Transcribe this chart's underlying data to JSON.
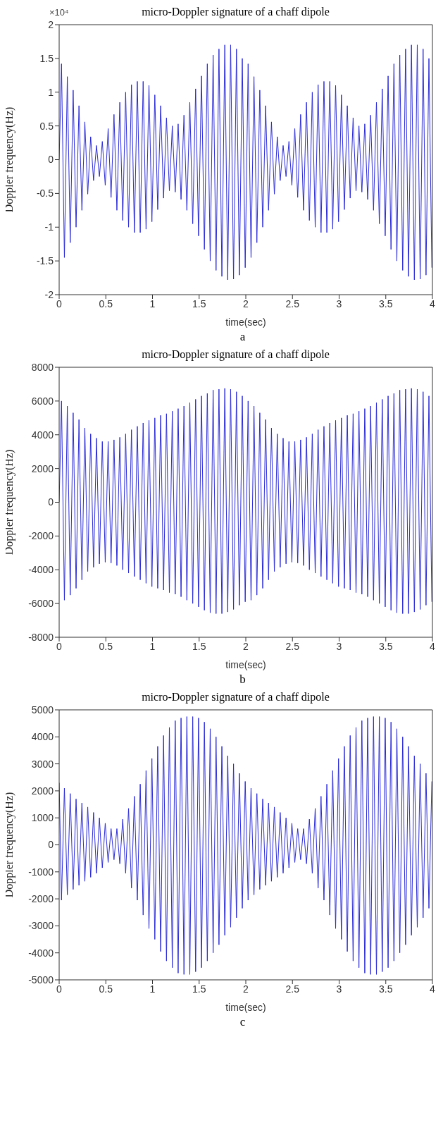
{
  "chart_data": [
    {
      "type": "line",
      "title": "micro-Doppler signature of a chaff dipole",
      "xlabel": "time(sec)",
      "ylabel": "Doppler frequency(Hz)",
      "annotations": [
        "×10⁴",
        "a"
      ],
      "xlim": [
        0,
        4
      ],
      "xticks": [
        0,
        0.5,
        1,
        1.5,
        2,
        2.5,
        3,
        3.5,
        4
      ],
      "ylim": [
        -2,
        2
      ],
      "yticks": [
        -2,
        -1.5,
        -1,
        -0.5,
        0,
        0.5,
        1,
        1.5,
        2
      ],
      "marker": "none",
      "line_style": "solid",
      "x": [
        0,
        0.025,
        0.05625,
        0.0875,
        0.11875,
        0.15,
        0.18125,
        0.2125,
        0.24375,
        0.275,
        0.30625,
        0.3375,
        0.36875,
        0.4,
        0.43125,
        0.4625,
        0.49375,
        0.525,
        0.55625,
        0.5875,
        0.61875,
        0.65,
        0.68125,
        0.7125,
        0.74375,
        0.775,
        0.80625,
        0.8375,
        0.86875,
        0.9,
        0.93125,
        0.9625,
        0.99375,
        1.025,
        1.05625,
        1.0875,
        1.11875,
        1.15,
        1.18125,
        1.2125,
        1.24375,
        1.275,
        1.30625,
        1.3375,
        1.36875,
        1.4,
        1.43125,
        1.4625,
        1.49375,
        1.525,
        1.55625,
        1.5875,
        1.61875,
        1.65,
        1.68125,
        1.7125,
        1.74375,
        1.775,
        1.80625,
        1.8375,
        1.86875,
        1.9,
        1.93125,
        1.9625,
        1.99375,
        2.025,
        2.05625,
        2.0875,
        2.11875,
        2.15,
        2.18125,
        2.2125,
        2.24375,
        2.275,
        2.30625,
        2.3375,
        2.36875,
        2.4,
        2.43125,
        2.4625,
        2.49375,
        2.525,
        2.55625,
        2.5875,
        2.61875,
        2.65,
        2.68125,
        2.7125,
        2.74375,
        2.775,
        2.80625,
        2.8375,
        2.86875,
        2.9,
        2.93125,
        2.9625,
        2.99375,
        3.025,
        3.05625,
        3.0875,
        3.11875,
        3.15,
        3.18125,
        3.2125,
        3.24375,
        3.275,
        3.30625,
        3.3375,
        3.36875,
        3.4,
        3.43125,
        3.4625,
        3.49375,
        3.525,
        3.55625,
        3.5875,
        3.61875,
        3.65,
        3.68125,
        3.7125,
        3.74375,
        3.775,
        3.80625,
        3.8375,
        3.86875,
        3.9,
        3.93125,
        3.9625,
        3.99375
      ],
      "series": [
        {
          "color": "#2b2bd9",
          "values": [
            0,
            1.42,
            -1.45,
            1.23,
            -1.23,
            1.03,
            -1,
            0.8,
            -0.75,
            0.56,
            -0.51,
            0.34,
            -0.31,
            0.21,
            -0.25,
            0.27,
            -0.38,
            0.46,
            -0.56,
            0.67,
            -0.75,
            0.85,
            -0.9,
            1,
            -1,
            1.11,
            -1.08,
            1.16,
            -1.08,
            1.16,
            -1.03,
            1.1,
            -0.92,
            0.96,
            -0.74,
            0.8,
            -0.57,
            0.62,
            -0.46,
            0.5,
            -0.48,
            0.53,
            -0.59,
            0.66,
            -0.75,
            0.85,
            -0.95,
            1.05,
            -1.13,
            1.24,
            -1.33,
            1.42,
            -1.5,
            1.55,
            -1.64,
            1.64,
            -1.73,
            1.7,
            -1.78,
            1.7,
            -1.77,
            1.64,
            -1.71,
            1.5,
            -1.6,
            1.42,
            -1.45,
            1.23,
            -1.23,
            1.03,
            -1,
            0.8,
            -0.75,
            0.56,
            -0.51,
            0.34,
            -0.31,
            0.21,
            -0.25,
            0.27,
            -0.38,
            0.46,
            -0.56,
            0.67,
            -0.75,
            0.85,
            -0.9,
            1,
            -1,
            1.11,
            -1.08,
            1.16,
            -1.08,
            1.16,
            -1.03,
            1.1,
            -0.92,
            0.96,
            -0.74,
            0.8,
            -0.57,
            0.62,
            -0.46,
            0.5,
            -0.48,
            0.53,
            -0.59,
            0.66,
            -0.75,
            0.85,
            -0.95,
            1.05,
            -1.13,
            1.24,
            -1.33,
            1.42,
            -1.5,
            1.55,
            -1.64,
            1.64,
            -1.73,
            1.7,
            -1.78,
            1.7,
            -1.77,
            1.64,
            -1.71,
            1.5,
            -1.6
          ]
        }
      ]
    },
    {
      "type": "line",
      "title": "micro-Doppler signature of a chaff dipole",
      "xlabel": "time(sec)",
      "ylabel": "Doppler frequency(Hz)",
      "annotations": [
        "b"
      ],
      "xlim": [
        0,
        4
      ],
      "xticks": [
        0,
        0.5,
        1,
        1.5,
        2,
        2.5,
        3,
        3.5,
        4
      ],
      "ylim": [
        -8000,
        8000
      ],
      "yticks": [
        -8000,
        -6000,
        -4000,
        -2000,
        0,
        2000,
        4000,
        6000,
        8000
      ],
      "marker": "none",
      "line_style": "solid",
      "x": [
        0,
        0.025,
        0.05625,
        0.0875,
        0.11875,
        0.15,
        0.18125,
        0.2125,
        0.24375,
        0.275,
        0.30625,
        0.3375,
        0.36875,
        0.4,
        0.43125,
        0.4625,
        0.49375,
        0.525,
        0.55625,
        0.5875,
        0.61875,
        0.65,
        0.68125,
        0.7125,
        0.74375,
        0.775,
        0.80625,
        0.8375,
        0.86875,
        0.9,
        0.93125,
        0.9625,
        0.99375,
        1.025,
        1.05625,
        1.0875,
        1.11875,
        1.15,
        1.18125,
        1.2125,
        1.24375,
        1.275,
        1.30625,
        1.3375,
        1.36875,
        1.4,
        1.43125,
        1.4625,
        1.49375,
        1.525,
        1.55625,
        1.5875,
        1.61875,
        1.65,
        1.68125,
        1.7125,
        1.74375,
        1.775,
        1.80625,
        1.8375,
        1.86875,
        1.9,
        1.93125,
        1.9625,
        1.99375,
        2.025,
        2.05625,
        2.0875,
        2.11875,
        2.15,
        2.18125,
        2.2125,
        2.24375,
        2.275,
        2.30625,
        2.3375,
        2.36875,
        2.4,
        2.43125,
        2.4625,
        2.49375,
        2.525,
        2.55625,
        2.5875,
        2.61875,
        2.65,
        2.68125,
        2.7125,
        2.74375,
        2.775,
        2.80625,
        2.8375,
        2.86875,
        2.9,
        2.93125,
        2.9625,
        2.99375,
        3.025,
        3.05625,
        3.0875,
        3.11875,
        3.15,
        3.18125,
        3.2125,
        3.24375,
        3.275,
        3.30625,
        3.3375,
        3.36875,
        3.4,
        3.43125,
        3.4625,
        3.49375,
        3.525,
        3.55625,
        3.5875,
        3.61875,
        3.65,
        3.68125,
        3.7125,
        3.74375,
        3.775,
        3.80625,
        3.8375,
        3.86875,
        3.9,
        3.93125,
        3.9625,
        3.99375
      ],
      "series": [
        {
          "color": "#2b2bd9",
          "values": [
            0,
            6000,
            -5800,
            5700,
            -5500,
            5300,
            -5100,
            4900,
            -4600,
            4400,
            -4100,
            4050,
            -3850,
            3800,
            -3650,
            3600,
            -3550,
            3600,
            -3600,
            3700,
            -3750,
            3850,
            -4000,
            4050,
            -4200,
            4300,
            -4400,
            4500,
            -4600,
            4700,
            -4800,
            4850,
            -5000,
            5000,
            -5100,
            5150,
            -5200,
            5250,
            -5350,
            5400,
            -5450,
            5550,
            -5600,
            5700,
            -5800,
            5900,
            -6000,
            6100,
            -6200,
            6300,
            -6400,
            6450,
            -6550,
            6650,
            -6600,
            6700,
            -6600,
            6750,
            -6500,
            6700,
            -6350,
            6550,
            -6100,
            6300,
            -5900,
            6000,
            -5800,
            5700,
            -5500,
            5300,
            -5100,
            4900,
            -4600,
            4400,
            -4100,
            4050,
            -3850,
            3800,
            -3650,
            3600,
            -3550,
            3600,
            -3600,
            3700,
            -3750,
            3850,
            -4000,
            4050,
            -4200,
            4300,
            -4400,
            4500,
            -4600,
            4700,
            -4800,
            4850,
            -5000,
            5000,
            -5100,
            5150,
            -5200,
            5250,
            -5350,
            5400,
            -5450,
            5550,
            -5600,
            5700,
            -5800,
            5900,
            -6000,
            6100,
            -6200,
            6300,
            -6400,
            6450,
            -6550,
            6650,
            -6600,
            6700,
            -6600,
            6750,
            -6500,
            6700,
            -6350,
            6550,
            -6100,
            6300,
            -5900
          ]
        }
      ]
    },
    {
      "type": "line",
      "title": "micro-Doppler signature of a chaff dipole",
      "xlabel": "time(sec)",
      "ylabel": "Doppler frequency(Hz)",
      "annotations": [
        "c"
      ],
      "xlim": [
        0,
        4
      ],
      "xticks": [
        0,
        0.5,
        1,
        1.5,
        2,
        2.5,
        3,
        3.5,
        4
      ],
      "ylim": [
        -5000,
        5000
      ],
      "yticks": [
        -5000,
        -4000,
        -3000,
        -2000,
        -1000,
        0,
        1000,
        2000,
        3000,
        4000,
        5000
      ],
      "marker": "none",
      "line_style": "solid",
      "x": [
        0,
        0.025,
        0.05625,
        0.0875,
        0.11875,
        0.15,
        0.18125,
        0.2125,
        0.24375,
        0.275,
        0.30625,
        0.3375,
        0.36875,
        0.4,
        0.43125,
        0.4625,
        0.49375,
        0.525,
        0.55625,
        0.5875,
        0.61875,
        0.65,
        0.68125,
        0.7125,
        0.74375,
        0.775,
        0.80625,
        0.8375,
        0.86875,
        0.9,
        0.93125,
        0.9625,
        0.99375,
        1.025,
        1.05625,
        1.0875,
        1.11875,
        1.15,
        1.18125,
        1.2125,
        1.24375,
        1.275,
        1.30625,
        1.3375,
        1.36875,
        1.4,
        1.43125,
        1.4625,
        1.49375,
        1.525,
        1.55625,
        1.5875,
        1.61875,
        1.65,
        1.68125,
        1.7125,
        1.74375,
        1.775,
        1.80625,
        1.8375,
        1.86875,
        1.9,
        1.93125,
        1.9625,
        1.99375,
        2.025,
        2.05625,
        2.0875,
        2.11875,
        2.15,
        2.18125,
        2.2125,
        2.24375,
        2.275,
        2.30625,
        2.3375,
        2.36875,
        2.4,
        2.43125,
        2.4625,
        2.49375,
        2.525,
        2.55625,
        2.5875,
        2.61875,
        2.65,
        2.68125,
        2.7125,
        2.74375,
        2.775,
        2.80625,
        2.8375,
        2.86875,
        2.9,
        2.93125,
        2.9625,
        2.99375,
        3.025,
        3.05625,
        3.0875,
        3.11875,
        3.15,
        3.18125,
        3.2125,
        3.24375,
        3.275,
        3.30625,
        3.3375,
        3.36875,
        3.4,
        3.43125,
        3.4625,
        3.49375,
        3.525,
        3.55625,
        3.5875,
        3.61875,
        3.65,
        3.68125,
        3.7125,
        3.74375,
        3.775,
        3.80625,
        3.8375,
        3.86875,
        3.9,
        3.93125,
        3.9625,
        3.99375
      ],
      "series": [
        {
          "color": "#2b2bd9",
          "values": [
            2300,
            -2050,
            2100,
            -1850,
            1900,
            -1650,
            1700,
            -1500,
            1550,
            -1350,
            1400,
            -1200,
            1200,
            -1050,
            1000,
            -850,
            800,
            -650,
            600,
            -550,
            600,
            -700,
            950,
            -1050,
            1350,
            -1600,
            1800,
            -2050,
            2250,
            -2600,
            2750,
            -3100,
            3200,
            -3500,
            3650,
            -3950,
            4050,
            -4300,
            4350,
            -4550,
            4600,
            -4750,
            4700,
            -4800,
            4750,
            -4800,
            4750,
            -4700,
            4700,
            -4550,
            4550,
            -4300,
            4300,
            -4000,
            4000,
            -3700,
            3650,
            -3350,
            3300,
            -3050,
            3000,
            -2700,
            2650,
            -2350,
            2350,
            -2050,
            2100,
            -1850,
            1900,
            -1650,
            1700,
            -1500,
            1550,
            -1350,
            1400,
            -1200,
            1200,
            -1050,
            1000,
            -850,
            800,
            -650,
            600,
            -550,
            600,
            -700,
            950,
            -1050,
            1350,
            -1600,
            1800,
            -2050,
            2250,
            -2600,
            2750,
            -3100,
            3200,
            -3500,
            3650,
            -3950,
            4050,
            -4300,
            4350,
            -4550,
            4600,
            -4750,
            4700,
            -4800,
            4750,
            -4800,
            4750,
            -4700,
            4700,
            -4550,
            4550,
            -4300,
            4300,
            -4000,
            4000,
            -3700,
            3650,
            -3350,
            3300,
            -3050,
            3000,
            -2700,
            2650,
            -2350,
            2350
          ]
        }
      ]
    }
  ]
}
